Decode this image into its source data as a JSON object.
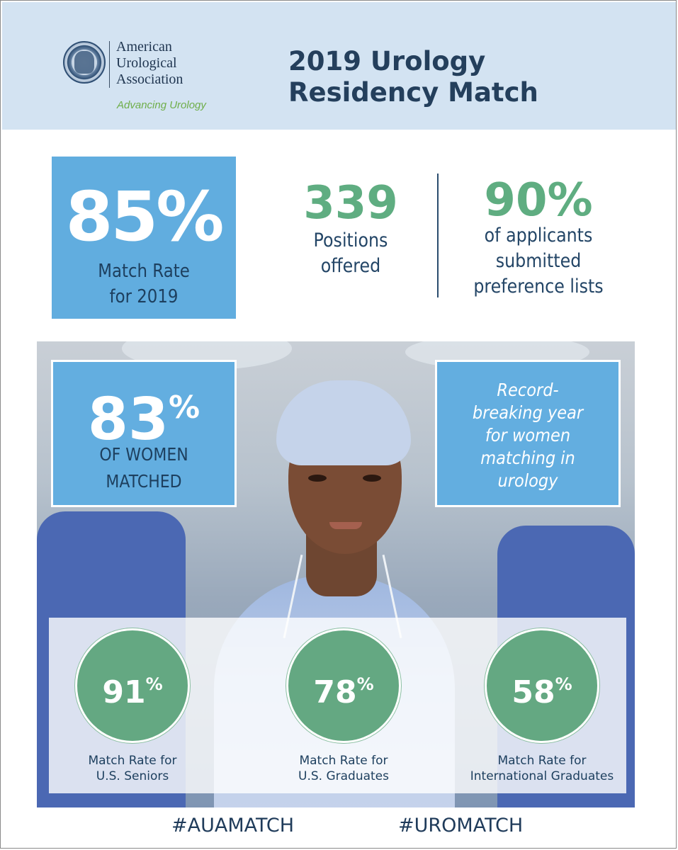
{
  "header": {
    "org_line1": "American",
    "org_line2": "Urological",
    "org_line3": "Association",
    "tagline": "Advancing Urology",
    "title_line1": "2019 Urology",
    "title_line2": "Residency Match"
  },
  "stats": {
    "match_rate_value": "85%",
    "match_rate_line1": "Match Rate",
    "match_rate_line2": "for 2019",
    "positions_value": "339",
    "positions_line1": "Positions",
    "positions_line2": "offered",
    "applicants_value": "90%",
    "applicants_line1": "of applicants",
    "applicants_line2": "submitted",
    "applicants_line3": "preference lists"
  },
  "women": {
    "value": "83",
    "unit": "%",
    "line1": "OF WOMEN",
    "line2": "MATCHED",
    "record_line1": "Record-",
    "record_line2": "breaking year",
    "record_line3": "for women",
    "record_line4": "matching in",
    "record_line5": "urology"
  },
  "circles": [
    {
      "value": "91",
      "unit": "%",
      "label_line1": "Match Rate for",
      "label_line2": "U.S. Seniors"
    },
    {
      "value": "78",
      "unit": "%",
      "label_line1": "Match Rate for",
      "label_line2": "U.S. Graduates"
    },
    {
      "value": "58",
      "unit": "%",
      "label_line1": "Match Rate for",
      "label_line2": "International Graduates"
    }
  ],
  "hashtags": [
    "#AUAMATCH",
    "#UROMATCH"
  ],
  "colors": {
    "header_bg": "#d3e3f2",
    "blue_box": "#61addf",
    "green_stat": "#5fad81",
    "green_circle": "#64a882",
    "navy_text": "#243f5c"
  }
}
